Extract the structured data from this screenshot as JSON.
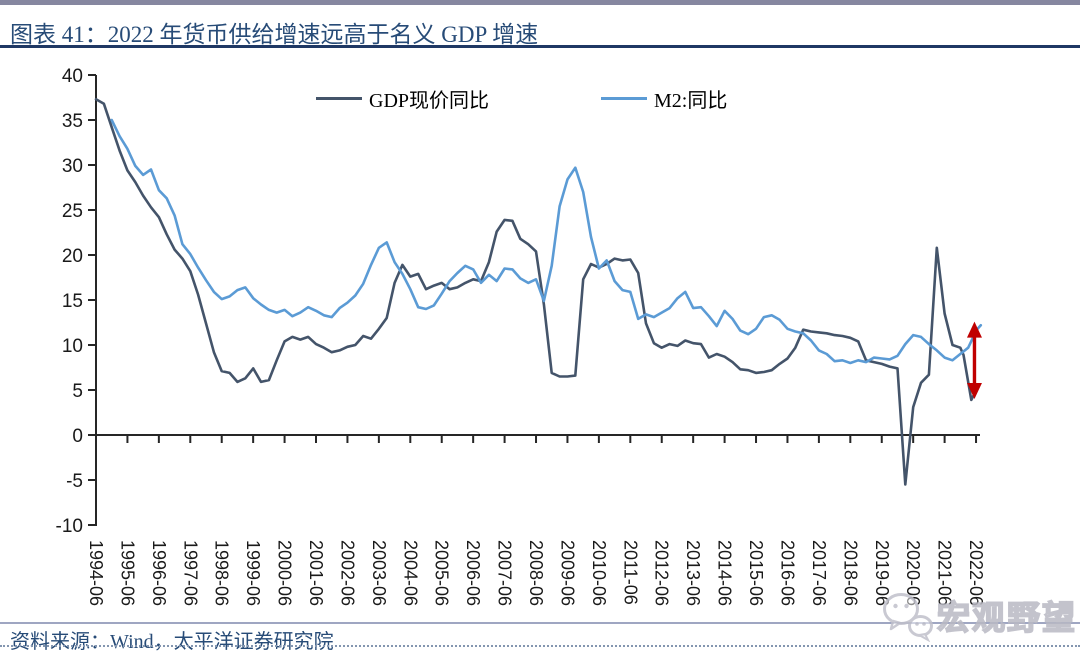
{
  "header": {
    "title": "图表 41：2022 年货币供给增速远高于名义 GDP 增速"
  },
  "footer": {
    "source": "资料来源：Wind，太平洋证券研究院"
  },
  "watermark": {
    "text": "宏观野望",
    "icon": "wechat-logo"
  },
  "colors": {
    "title_text": "#274B77",
    "top_bar": "#8687A0",
    "title_rule": "#1F3864",
    "bottom_rule": "#9FA6C2",
    "dotted_rule": "#8496B0",
    "axis_text": "#1a1a1a",
    "axis_line": "#262626",
    "watermark": "#B9B9C4"
  },
  "chart_data": {
    "type": "line",
    "title": "",
    "xlabel": "",
    "ylabel": "",
    "ylim": [
      -10,
      40
    ],
    "ytick_step": 5,
    "grid": false,
    "legend_position": "top",
    "x_tick_labels": [
      "1994-06",
      "1995-06",
      "1996-06",
      "1997-06",
      "1998-06",
      "1999-06",
      "2000-06",
      "2001-06",
      "2002-06",
      "2003-06",
      "2004-06",
      "2005-06",
      "2006-06",
      "2007-06",
      "2008-06",
      "2009-06",
      "2010-06",
      "2011-06",
      "2012-06",
      "2013-06",
      "2014-06",
      "2015-06",
      "2016-06",
      "2017-06",
      "2018-06",
      "2019-06",
      "2020-06",
      "2021-06",
      "2022-06"
    ],
    "series": [
      {
        "name": "GDP现价同比",
        "color": "#44546A",
        "points": [
          [
            1994.5,
            37.3
          ],
          [
            1994.75,
            36.8
          ],
          [
            1995.0,
            34.2
          ],
          [
            1995.25,
            31.6
          ],
          [
            1995.5,
            29.4
          ],
          [
            1995.75,
            28.1
          ],
          [
            1996.0,
            26.6
          ],
          [
            1996.25,
            25.3
          ],
          [
            1996.5,
            24.2
          ],
          [
            1996.75,
            22.3
          ],
          [
            1997.0,
            20.6
          ],
          [
            1997.25,
            19.6
          ],
          [
            1997.5,
            18.2
          ],
          [
            1997.75,
            15.6
          ],
          [
            1998.0,
            12.4
          ],
          [
            1998.25,
            9.2
          ],
          [
            1998.5,
            7.1
          ],
          [
            1998.75,
            6.9
          ],
          [
            1999.0,
            5.9
          ],
          [
            1999.25,
            6.3
          ],
          [
            1999.5,
            7.4
          ],
          [
            1999.75,
            5.9
          ],
          [
            2000.0,
            6.1
          ],
          [
            2000.25,
            8.3
          ],
          [
            2000.5,
            10.4
          ],
          [
            2000.75,
            10.9
          ],
          [
            2001.0,
            10.6
          ],
          [
            2001.25,
            10.9
          ],
          [
            2001.5,
            10.1
          ],
          [
            2001.75,
            9.7
          ],
          [
            2002.0,
            9.2
          ],
          [
            2002.25,
            9.4
          ],
          [
            2002.5,
            9.8
          ],
          [
            2002.75,
            10.0
          ],
          [
            2003.0,
            11.0
          ],
          [
            2003.25,
            10.7
          ],
          [
            2003.5,
            11.8
          ],
          [
            2003.75,
            13.0
          ],
          [
            2004.0,
            16.9
          ],
          [
            2004.25,
            18.9
          ],
          [
            2004.5,
            17.6
          ],
          [
            2004.75,
            17.9
          ],
          [
            2005.0,
            16.2
          ],
          [
            2005.25,
            16.6
          ],
          [
            2005.5,
            16.9
          ],
          [
            2005.75,
            16.2
          ],
          [
            2006.0,
            16.4
          ],
          [
            2006.25,
            16.9
          ],
          [
            2006.5,
            17.3
          ],
          [
            2006.75,
            17.1
          ],
          [
            2007.0,
            19.2
          ],
          [
            2007.25,
            22.6
          ],
          [
            2007.5,
            23.9
          ],
          [
            2007.75,
            23.8
          ],
          [
            2008.0,
            21.8
          ],
          [
            2008.25,
            21.2
          ],
          [
            2008.5,
            20.4
          ],
          [
            2008.75,
            14.5
          ],
          [
            2009.0,
            6.9
          ],
          [
            2009.25,
            6.5
          ],
          [
            2009.5,
            6.5
          ],
          [
            2009.75,
            6.6
          ],
          [
            2010.0,
            17.3
          ],
          [
            2010.25,
            19.0
          ],
          [
            2010.5,
            18.6
          ],
          [
            2010.75,
            19.0
          ],
          [
            2011.0,
            19.6
          ],
          [
            2011.25,
            19.4
          ],
          [
            2011.5,
            19.5
          ],
          [
            2011.75,
            18.0
          ],
          [
            2012.0,
            12.4
          ],
          [
            2012.25,
            10.2
          ],
          [
            2012.5,
            9.7
          ],
          [
            2012.75,
            10.1
          ],
          [
            2013.0,
            9.9
          ],
          [
            2013.25,
            10.5
          ],
          [
            2013.5,
            10.2
          ],
          [
            2013.75,
            10.1
          ],
          [
            2014.0,
            8.6
          ],
          [
            2014.25,
            9.0
          ],
          [
            2014.5,
            8.7
          ],
          [
            2014.75,
            8.1
          ],
          [
            2015.0,
            7.3
          ],
          [
            2015.25,
            7.2
          ],
          [
            2015.5,
            6.9
          ],
          [
            2015.75,
            7.0
          ],
          [
            2016.0,
            7.2
          ],
          [
            2016.25,
            7.9
          ],
          [
            2016.5,
            8.5
          ],
          [
            2016.75,
            9.7
          ],
          [
            2017.0,
            11.7
          ],
          [
            2017.25,
            11.5
          ],
          [
            2017.5,
            11.4
          ],
          [
            2017.75,
            11.3
          ],
          [
            2018.0,
            11.1
          ],
          [
            2018.25,
            11.0
          ],
          [
            2018.5,
            10.8
          ],
          [
            2018.75,
            10.4
          ],
          [
            2019.0,
            8.3
          ],
          [
            2019.25,
            8.1
          ],
          [
            2019.5,
            7.9
          ],
          [
            2019.75,
            7.6
          ],
          [
            2020.0,
            7.4
          ],
          [
            2020.25,
            -5.5
          ],
          [
            2020.5,
            3.1
          ],
          [
            2020.75,
            5.8
          ],
          [
            2021.0,
            6.7
          ],
          [
            2021.25,
            20.8
          ],
          [
            2021.5,
            13.5
          ],
          [
            2021.75,
            10.0
          ],
          [
            2022.0,
            9.7
          ],
          [
            2022.1,
            8.9
          ],
          [
            2022.35,
            3.9
          ],
          [
            2022.5,
            4.9
          ]
        ]
      },
      {
        "name": "M2:同比",
        "color": "#5B9BD5",
        "points": [
          [
            1995.0,
            35.0
          ],
          [
            1995.25,
            33.2
          ],
          [
            1995.5,
            31.8
          ],
          [
            1995.75,
            29.9
          ],
          [
            1996.0,
            28.9
          ],
          [
            1996.25,
            29.5
          ],
          [
            1996.5,
            27.2
          ],
          [
            1996.75,
            26.3
          ],
          [
            1997.0,
            24.4
          ],
          [
            1997.25,
            21.2
          ],
          [
            1997.5,
            20.1
          ],
          [
            1997.75,
            18.6
          ],
          [
            1998.0,
            17.2
          ],
          [
            1998.25,
            15.9
          ],
          [
            1998.5,
            15.1
          ],
          [
            1998.75,
            15.4
          ],
          [
            1999.0,
            16.1
          ],
          [
            1999.25,
            16.4
          ],
          [
            1999.5,
            15.2
          ],
          [
            1999.75,
            14.5
          ],
          [
            2000.0,
            13.9
          ],
          [
            2000.25,
            13.6
          ],
          [
            2000.5,
            13.9
          ],
          [
            2000.75,
            13.2
          ],
          [
            2001.0,
            13.6
          ],
          [
            2001.25,
            14.2
          ],
          [
            2001.5,
            13.8
          ],
          [
            2001.75,
            13.3
          ],
          [
            2002.0,
            13.1
          ],
          [
            2002.25,
            14.1
          ],
          [
            2002.5,
            14.7
          ],
          [
            2002.75,
            15.5
          ],
          [
            2003.0,
            16.8
          ],
          [
            2003.25,
            18.9
          ],
          [
            2003.5,
            20.8
          ],
          [
            2003.75,
            21.4
          ],
          [
            2004.0,
            19.2
          ],
          [
            2004.25,
            17.9
          ],
          [
            2004.5,
            16.2
          ],
          [
            2004.75,
            14.2
          ],
          [
            2005.0,
            14.0
          ],
          [
            2005.25,
            14.4
          ],
          [
            2005.5,
            15.7
          ],
          [
            2005.75,
            17.1
          ],
          [
            2006.0,
            18.0
          ],
          [
            2006.25,
            18.8
          ],
          [
            2006.5,
            18.4
          ],
          [
            2006.75,
            16.9
          ],
          [
            2007.0,
            17.8
          ],
          [
            2007.25,
            17.1
          ],
          [
            2007.5,
            18.5
          ],
          [
            2007.75,
            18.4
          ],
          [
            2008.0,
            17.4
          ],
          [
            2008.25,
            16.9
          ],
          [
            2008.5,
            17.3
          ],
          [
            2008.75,
            14.9
          ],
          [
            2009.0,
            18.8
          ],
          [
            2009.25,
            25.4
          ],
          [
            2009.5,
            28.4
          ],
          [
            2009.75,
            29.7
          ],
          [
            2010.0,
            27.0
          ],
          [
            2010.25,
            22.0
          ],
          [
            2010.5,
            18.5
          ],
          [
            2010.75,
            19.4
          ],
          [
            2011.0,
            17.1
          ],
          [
            2011.25,
            16.1
          ],
          [
            2011.5,
            15.9
          ],
          [
            2011.75,
            12.9
          ],
          [
            2012.0,
            13.4
          ],
          [
            2012.25,
            13.1
          ],
          [
            2012.5,
            13.6
          ],
          [
            2012.75,
            14.1
          ],
          [
            2013.0,
            15.2
          ],
          [
            2013.25,
            15.9
          ],
          [
            2013.5,
            14.1
          ],
          [
            2013.75,
            14.2
          ],
          [
            2014.0,
            13.2
          ],
          [
            2014.25,
            12.1
          ],
          [
            2014.5,
            13.8
          ],
          [
            2014.75,
            12.9
          ],
          [
            2015.0,
            11.6
          ],
          [
            2015.25,
            11.2
          ],
          [
            2015.5,
            11.8
          ],
          [
            2015.75,
            13.1
          ],
          [
            2016.0,
            13.3
          ],
          [
            2016.25,
            12.8
          ],
          [
            2016.5,
            11.8
          ],
          [
            2016.75,
            11.5
          ],
          [
            2017.0,
            11.3
          ],
          [
            2017.25,
            10.5
          ],
          [
            2017.5,
            9.4
          ],
          [
            2017.75,
            9.0
          ],
          [
            2018.0,
            8.2
          ],
          [
            2018.25,
            8.3
          ],
          [
            2018.5,
            8.0
          ],
          [
            2018.75,
            8.3
          ],
          [
            2019.0,
            8.1
          ],
          [
            2019.25,
            8.6
          ],
          [
            2019.5,
            8.5
          ],
          [
            2019.75,
            8.4
          ],
          [
            2020.0,
            8.8
          ],
          [
            2020.25,
            10.1
          ],
          [
            2020.5,
            11.1
          ],
          [
            2020.75,
            10.9
          ],
          [
            2021.0,
            10.1
          ],
          [
            2021.25,
            9.4
          ],
          [
            2021.5,
            8.6
          ],
          [
            2021.75,
            8.3
          ],
          [
            2022.0,
            9.0
          ],
          [
            2022.25,
            9.7
          ],
          [
            2022.4,
            10.8
          ],
          [
            2022.55,
            11.8
          ],
          [
            2022.65,
            12.2
          ]
        ]
      }
    ],
    "annotation": {
      "type": "double_arrow",
      "x": 2022.45,
      "y_top": 12.6,
      "y_bottom": 4.0,
      "color": "#C00000"
    }
  }
}
